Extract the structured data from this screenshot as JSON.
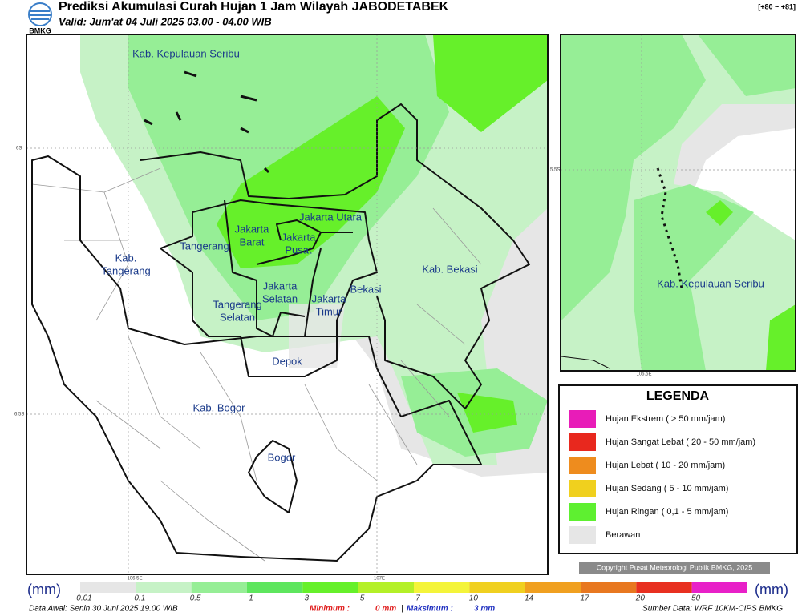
{
  "header": {
    "title": "Prediksi Akumulasi Curah Hujan 1 Jam Wilayah JABODETABEK",
    "subtitle": "Valid: Jum'at 04 Juli 2025 03.00 - 04.00 WIB",
    "logo": "BMKG",
    "range": "[+80 ~ +81]"
  },
  "map": {
    "labels": [
      [
        "Kab. Kepulauan Seribu"
      ],
      [
        "Jakarta Utara"
      ],
      [
        "Jakarta",
        "Barat"
      ],
      [
        "Jakarta",
        "Pusat"
      ],
      [
        "Tangerang"
      ],
      [
        "Kab.",
        "Tangerang"
      ],
      [
        "Kab. Bekasi"
      ],
      [
        "Bekasi"
      ],
      [
        "Jakarta",
        "Selatan"
      ],
      [
        "Jakarta",
        "Timur"
      ],
      [
        "Tangerang",
        "Selatan"
      ],
      [
        "Depok"
      ],
      [
        "Kab. Bogor"
      ],
      [
        "Bogor"
      ]
    ],
    "lat_labels": [
      "6S",
      "6.5S"
    ],
    "lon_labels": [
      "106.5E",
      "107E"
    ]
  },
  "inset": {
    "label": "Kab. Kepulauan Seribu",
    "lat_label": "5.5S",
    "lon_label": "106.5E"
  },
  "legend": {
    "title": "LEGENDA",
    "items": [
      {
        "label": "Hujan Ekstrem ( > 50 mm/jam)",
        "color": "#e81cb8"
      },
      {
        "label": "Hujan Sangat Lebat ( 20 - 50 mm/jam)",
        "color": "#e8281e"
      },
      {
        "label": "Hujan Lebat ( 10 - 20 mm/jam)",
        "color": "#ee8c1e"
      },
      {
        "label": "Hujan Sedang ( 5 - 10 mm/jam)",
        "color": "#f0d01e"
      },
      {
        "label": "Hujan Ringan ( 0,1 - 5 mm/jam)",
        "color": "#5ef030"
      },
      {
        "label": "Berawan",
        "color": "#e6e6e6"
      }
    ]
  },
  "copyright": "Copyright Pusat Meteorologi Publik BMKG, 2025",
  "colorbar": {
    "unit": "(mm)",
    "steps": [
      {
        "label": "0.01",
        "color": "#e6e6e6"
      },
      {
        "label": "0.1",
        "color": "#c6f2c6"
      },
      {
        "label": "0.5",
        "color": "#96ee96"
      },
      {
        "label": "1",
        "color": "#5ee65e"
      },
      {
        "label": "3",
        "color": "#66f02a"
      },
      {
        "label": "5",
        "color": "#b4f028"
      },
      {
        "label": "7",
        "color": "#f4f43a"
      },
      {
        "label": "10",
        "color": "#f0d020"
      },
      {
        "label": "14",
        "color": "#f0a020"
      },
      {
        "label": "17",
        "color": "#e87820"
      },
      {
        "label": "20",
        "color": "#e83020"
      },
      {
        "label": "50",
        "color": "#e820c8"
      }
    ]
  },
  "footer": {
    "data_awal": "Data Awal: Senin 30 Juni 2025 19.00 WIB",
    "min_label": "Minimum :",
    "min_value": "0 mm",
    "separator": "|",
    "max_label": "Maksimum :",
    "max_value": "3 mm",
    "source": "Sumber Data: WRF 10KM-CIPS BMKG"
  }
}
